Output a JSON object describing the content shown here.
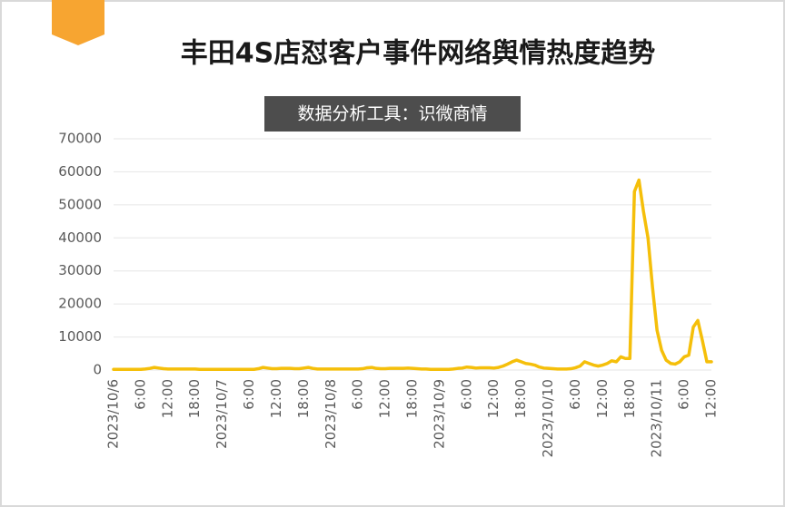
{
  "chart_data": {
    "type": "line",
    "title": "丰田4S店怼客户事件网络舆情热度趋势",
    "subtitle": "数据分析工具：识微商情",
    "categories": [
      "2023/10/6",
      null,
      null,
      null,
      null,
      null,
      "6:00",
      null,
      null,
      null,
      null,
      null,
      "12:00",
      null,
      null,
      null,
      null,
      null,
      "18:00",
      null,
      null,
      null,
      null,
      null,
      "2023/10/7",
      null,
      null,
      null,
      null,
      null,
      "6:00",
      null,
      null,
      null,
      null,
      null,
      "12:00",
      null,
      null,
      null,
      null,
      null,
      "18:00",
      null,
      null,
      null,
      null,
      null,
      "2023/10/8",
      null,
      null,
      null,
      null,
      null,
      "6:00",
      null,
      null,
      null,
      null,
      null,
      "12:00",
      null,
      null,
      null,
      null,
      null,
      "18:00",
      null,
      null,
      null,
      null,
      null,
      "2023/10/9",
      null,
      null,
      null,
      null,
      null,
      "6:00",
      null,
      null,
      null,
      null,
      null,
      "12:00",
      null,
      null,
      null,
      null,
      null,
      "18:00",
      null,
      null,
      null,
      null,
      null,
      "2023/10/10",
      null,
      null,
      null,
      null,
      null,
      "6:00",
      null,
      null,
      null,
      null,
      null,
      "12:00",
      null,
      null,
      null,
      null,
      null,
      "18:00",
      null,
      null,
      null,
      null,
      null,
      "2023/10/11",
      null,
      null,
      null,
      null,
      null,
      "6:00",
      null,
      null,
      null,
      null,
      null,
      "12:00"
    ],
    "values": [
      200,
      200,
      200,
      200,
      200,
      200,
      200,
      300,
      500,
      800,
      600,
      400,
      300,
      300,
      300,
      300,
      300,
      300,
      300,
      200,
      200,
      200,
      200,
      200,
      200,
      200,
      200,
      200,
      200,
      200,
      200,
      200,
      400,
      800,
      600,
      400,
      400,
      500,
      500,
      500,
      400,
      400,
      600,
      800,
      500,
      300,
      300,
      300,
      300,
      300,
      300,
      300,
      300,
      300,
      300,
      400,
      700,
      800,
      500,
      400,
      400,
      500,
      500,
      500,
      500,
      600,
      500,
      400,
      300,
      300,
      200,
      200,
      200,
      200,
      200,
      300,
      500,
      600,
      900,
      800,
      600,
      700,
      700,
      700,
      600,
      800,
      1200,
      1800,
      2500,
      3000,
      2500,
      2000,
      1800,
      1500,
      900,
      600,
      500,
      400,
      300,
      300,
      300,
      400,
      700,
      1200,
      2500,
      2000,
      1500,
      1200,
      1500,
      2000,
      2800,
      2500,
      4000,
      3500,
      3500,
      54000,
      57500,
      48000,
      40000,
      25000,
      12000,
      6000,
      3000,
      2000,
      1800,
      2500,
      4000,
      4500,
      13000,
      15000,
      9000,
      2500,
      2500
    ],
    "color": "#f5bf0a",
    "ylim": [
      0,
      70000
    ],
    "yticks": [
      0,
      10000,
      20000,
      30000,
      40000,
      50000,
      60000,
      70000
    ],
    "grid": true
  }
}
